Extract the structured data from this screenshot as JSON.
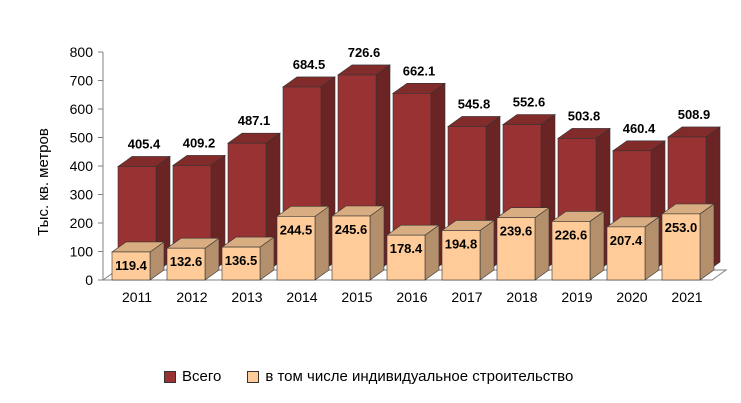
{
  "chart_data": {
    "type": "bar",
    "categories": [
      "2011",
      "2012",
      "2013",
      "2014",
      "2015",
      "2016",
      "2017",
      "2018",
      "2019",
      "2020",
      "2021"
    ],
    "series": [
      {
        "name": "Всего",
        "values": [
          405.4,
          409.2,
          487.1,
          684.5,
          726.6,
          662.1,
          545.8,
          552.6,
          503.8,
          460.4,
          508.9
        ],
        "color": "#993333"
      },
      {
        "name": "в том числе индивидуальное строительство",
        "values": [
          119.4,
          132.6,
          136.5,
          244.5,
          245.6,
          178.4,
          194.8,
          239.6,
          226.6,
          207.4,
          253.0
        ],
        "color": "#ffcc99"
      }
    ],
    "ylabel": "Тыс. кв. метров",
    "xlabel": "",
    "ylim": [
      0,
      800
    ],
    "yticks": [
      0,
      100,
      200,
      300,
      400,
      500,
      600,
      700,
      800
    ],
    "legend_position": "bottom",
    "grid": false,
    "style": "3d"
  }
}
